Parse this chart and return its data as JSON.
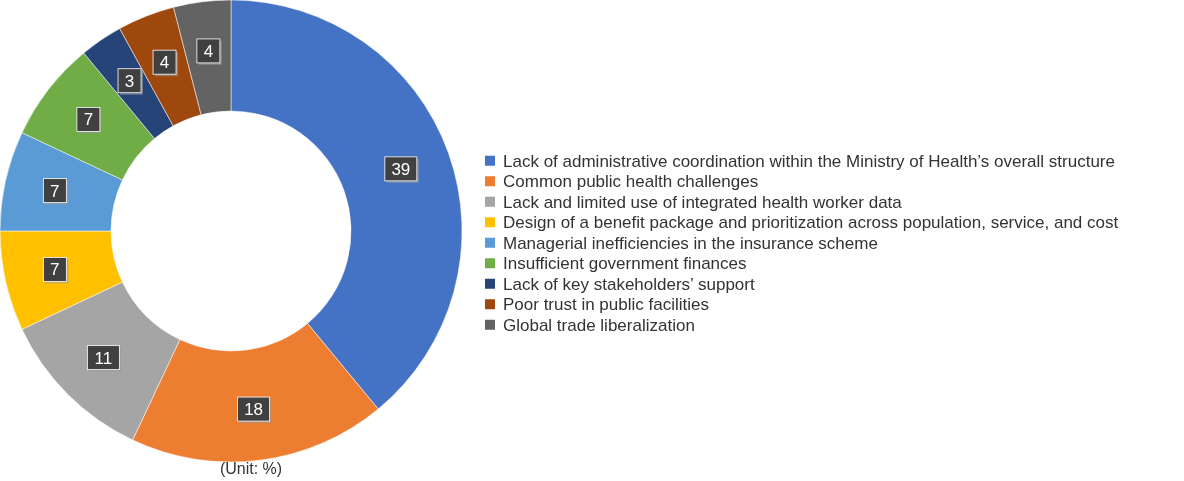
{
  "chart_data": {
    "type": "donut",
    "categories": [
      "Lack of administrative coordination within the Ministry of Health’s overall structure",
      "Common public health challenges",
      "Lack and limited use of integrated health worker data",
      "Design of a benefit package and prioritization across population, service, and cost",
      "Managerial inefficiencies in the insurance scheme",
      "Insufficient government finances",
      "Lack of key stakeholders’ support",
      "Poor trust in public facilities",
      "Global trade liberalization"
    ],
    "values": [
      39,
      18,
      11,
      7,
      7,
      7,
      3,
      4,
      4
    ],
    "colors": [
      "#4472c4",
      "#ed7d31",
      "#a5a5a5",
      "#ffc000",
      "#5b9bd5",
      "#70ad47",
      "#264478",
      "#9e480e",
      "#636363"
    ],
    "data_labels": true,
    "legend": "right",
    "annotations": [
      "(Unit: %)"
    ]
  }
}
